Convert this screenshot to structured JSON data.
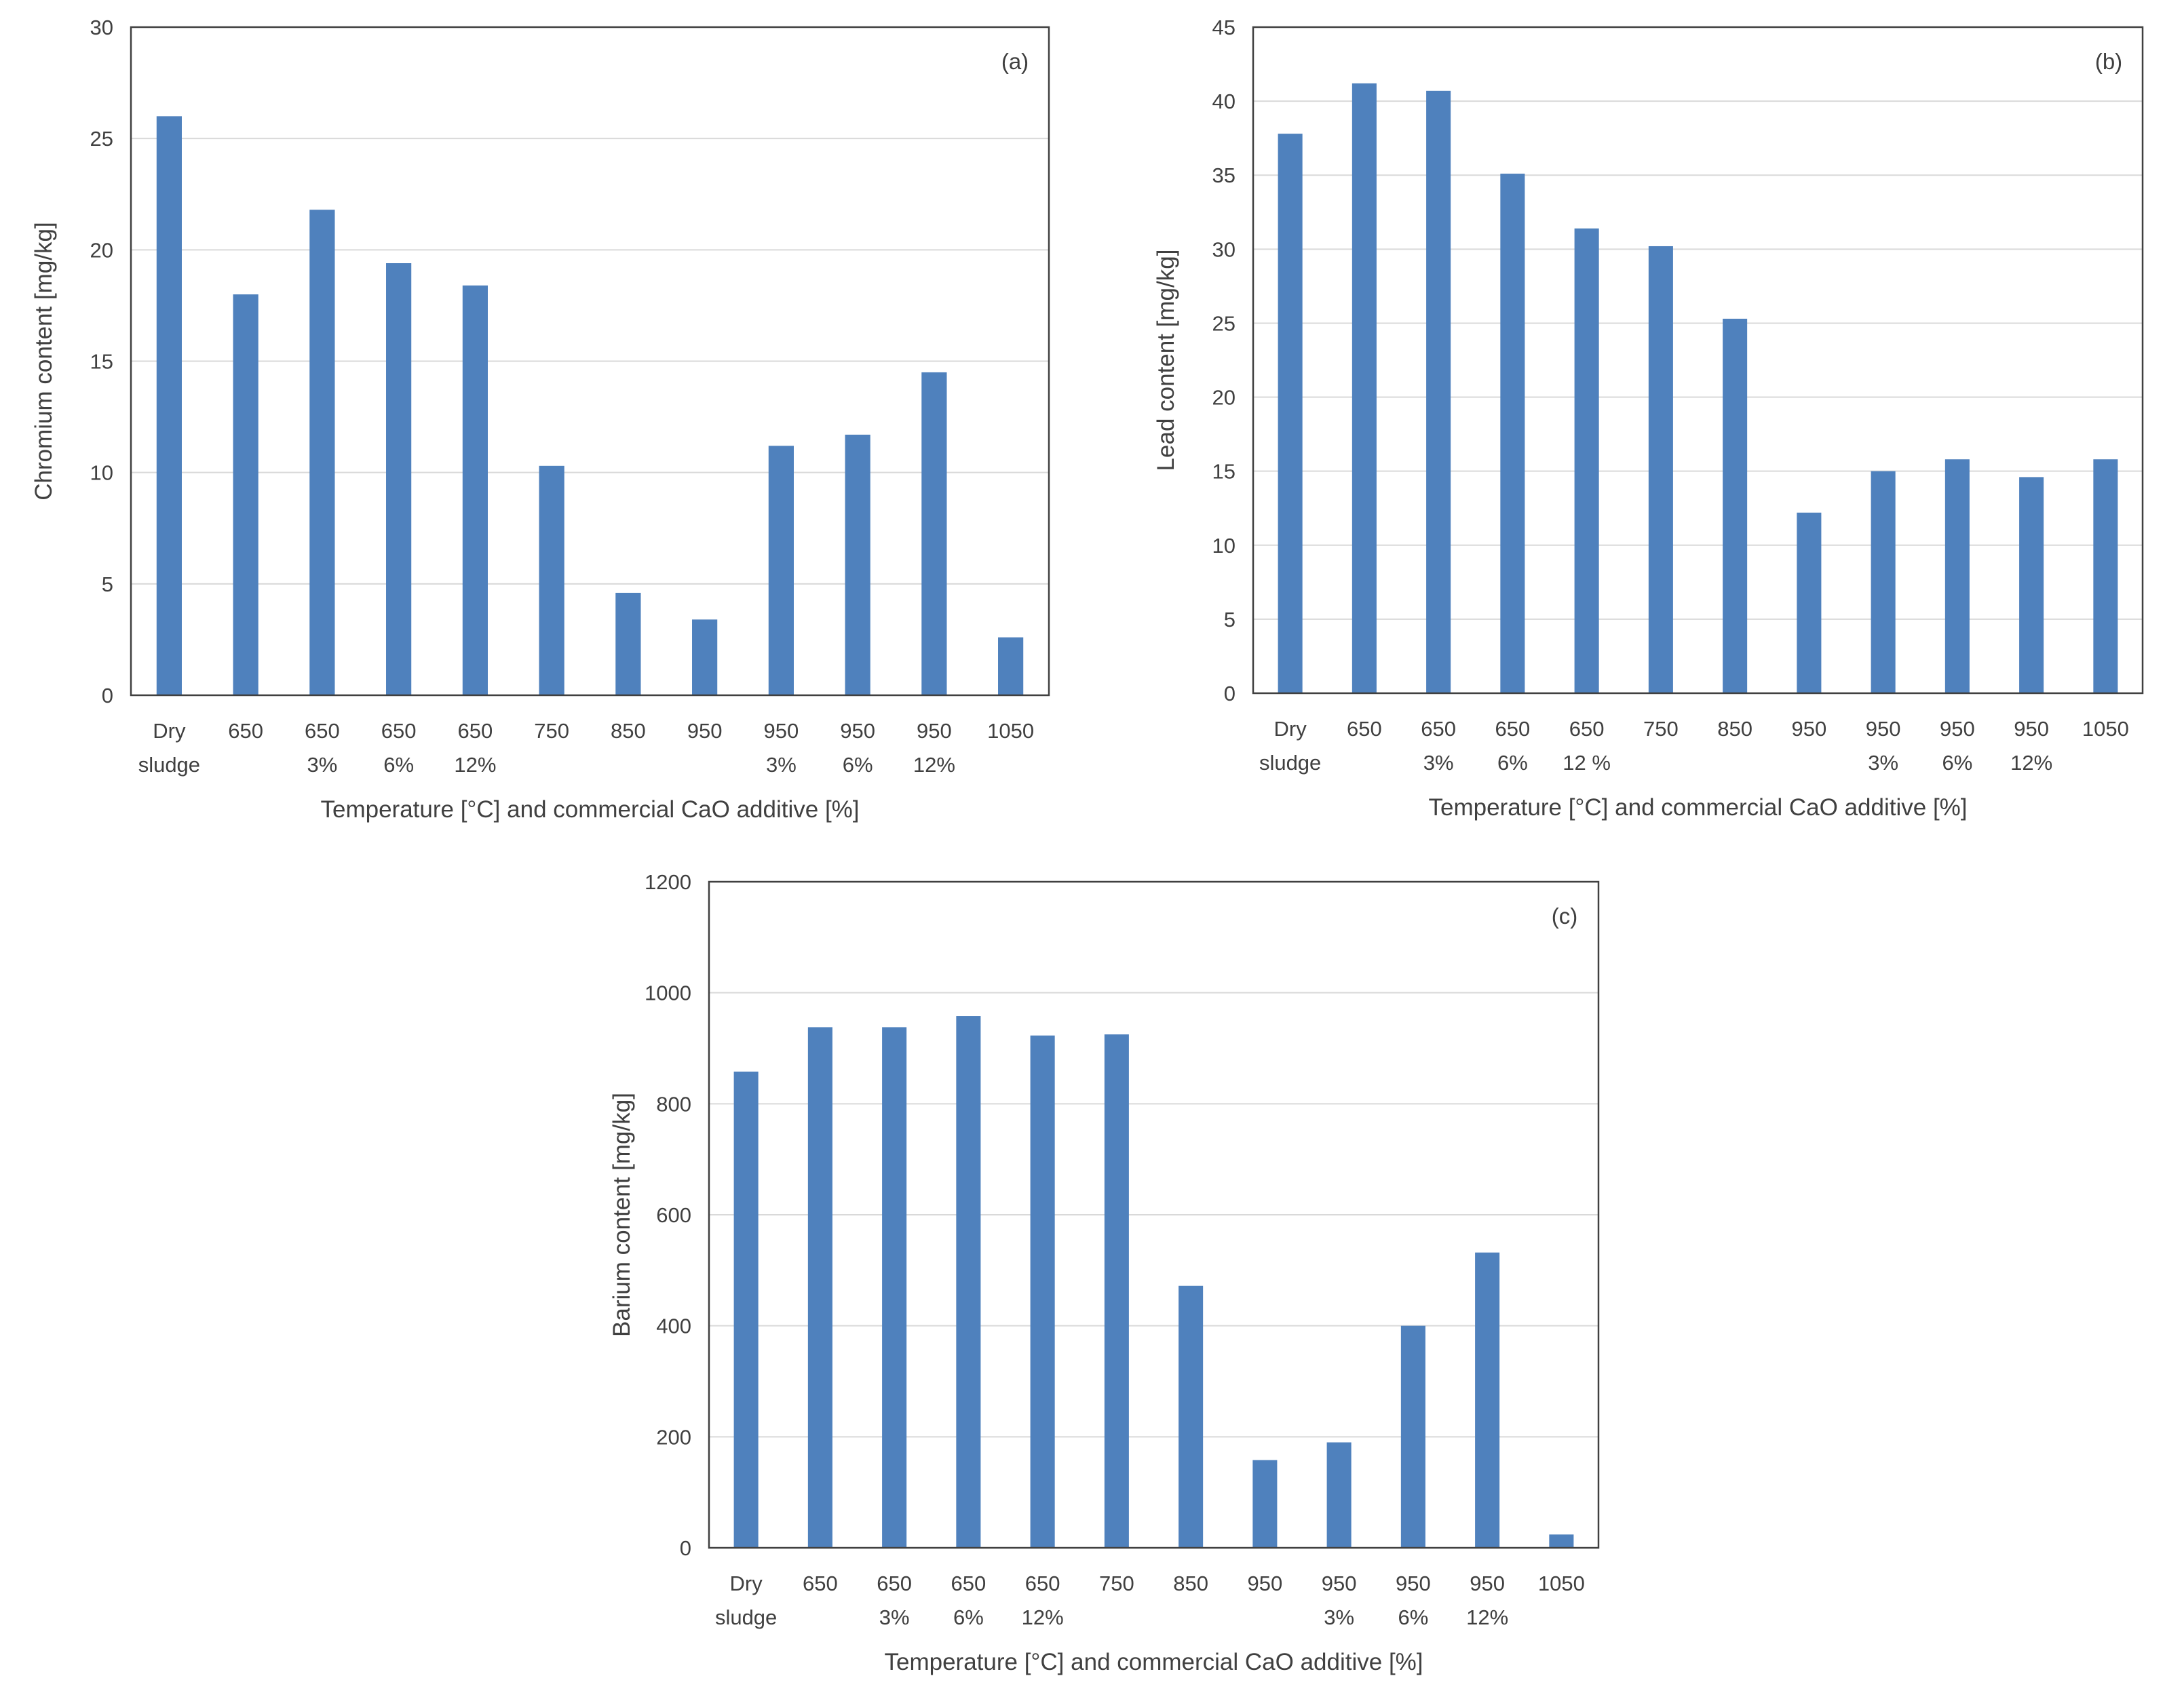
{
  "chart_data": [
    {
      "type": "bar",
      "panel_label": "(a)",
      "ylabel": "Chromium content [mg/kg]",
      "xlabel": "Temperature [°C] and commercial CaO additive [%]",
      "ylim": [
        0,
        30
      ],
      "yticks": [
        0,
        5,
        10,
        15,
        20,
        25,
        30
      ],
      "categories": [
        [
          "Dry",
          "sludge"
        ],
        [
          "650"
        ],
        [
          "650",
          "3%"
        ],
        [
          "650",
          "6%"
        ],
        [
          "650",
          "12%"
        ],
        [
          "750"
        ],
        [
          "850"
        ],
        [
          "950"
        ],
        [
          "950",
          "3%"
        ],
        [
          "950",
          "6%"
        ],
        [
          "950",
          "12%"
        ],
        [
          "1050"
        ]
      ],
      "values": [
        26.0,
        18.0,
        21.8,
        19.4,
        18.4,
        10.3,
        4.6,
        3.4,
        11.2,
        11.7,
        14.5,
        2.6
      ],
      "bar_color": "#4f81bd",
      "grid": true
    },
    {
      "type": "bar",
      "panel_label": "(b)",
      "ylabel": "Lead content [mg/kg]",
      "xlabel": "Temperature [°C] and commercial CaO additive [%]",
      "ylim": [
        0,
        45
      ],
      "yticks": [
        0,
        5,
        10,
        15,
        20,
        25,
        30,
        35,
        40,
        45
      ],
      "categories": [
        [
          "Dry",
          "sludge"
        ],
        [
          "650"
        ],
        [
          "650",
          "3%"
        ],
        [
          "650",
          "6%"
        ],
        [
          "650",
          "12 %"
        ],
        [
          "750"
        ],
        [
          "850"
        ],
        [
          "950"
        ],
        [
          "950",
          "3%"
        ],
        [
          "950",
          "6%"
        ],
        [
          "950",
          "12%"
        ],
        [
          "1050"
        ]
      ],
      "values": [
        37.8,
        41.2,
        40.7,
        35.1,
        31.4,
        30.2,
        25.3,
        12.2,
        15.0,
        15.8,
        14.6,
        15.8
      ],
      "bar_color": "#4f81bd",
      "grid": true
    },
    {
      "type": "bar",
      "panel_label": "(c)",
      "ylabel": "Barium content [mg/kg]",
      "xlabel": "Temperature [°C] and commercial CaO additive [%]",
      "ylim": [
        0,
        1200
      ],
      "yticks": [
        0,
        200,
        400,
        600,
        800,
        1000,
        1200
      ],
      "categories": [
        [
          "Dry",
          "sludge"
        ],
        [
          "650"
        ],
        [
          "650",
          "3%"
        ],
        [
          "650",
          "6%"
        ],
        [
          "650",
          "12%"
        ],
        [
          "750"
        ],
        [
          "850"
        ],
        [
          "950"
        ],
        [
          "950",
          "3%"
        ],
        [
          "950",
          "6%"
        ],
        [
          "950",
          "12%"
        ],
        [
          "1050"
        ]
      ],
      "values": [
        858,
        938,
        938,
        958,
        923,
        925,
        472,
        158,
        190,
        400,
        532,
        24
      ],
      "bar_color": "#4f81bd",
      "grid": true
    }
  ]
}
